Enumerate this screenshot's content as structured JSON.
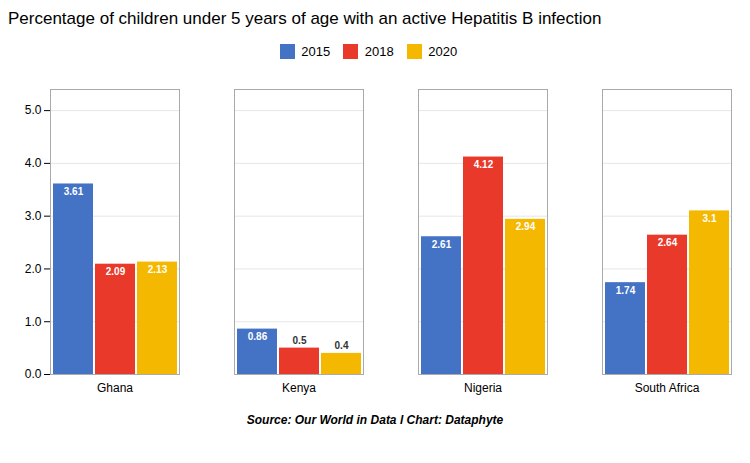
{
  "chart_data": {
    "type": "bar",
    "title": "Percentage of children under 5 years of age with an active Hepatitis B infection",
    "caption": "Source: Our World in Data l Chart: Dataphyte",
    "categories": [
      "Ghana",
      "Kenya",
      "Nigeria",
      "South Africa"
    ],
    "series": [
      {
        "name": "2015",
        "color": "#4472C4",
        "values": [
          3.61,
          0.86,
          2.61,
          1.74
        ]
      },
      {
        "name": "2018",
        "color": "#E8392A",
        "values": [
          2.09,
          0.5,
          4.12,
          2.64
        ]
      },
      {
        "name": "2020",
        "color": "#F5B800",
        "values": [
          2.13,
          0.4,
          2.94,
          3.1
        ]
      }
    ],
    "ylim": [
      0,
      5.4
    ],
    "yticks": [
      0,
      1,
      2,
      3,
      4,
      5
    ],
    "grid": true,
    "legend": "top",
    "data_labels": true
  }
}
